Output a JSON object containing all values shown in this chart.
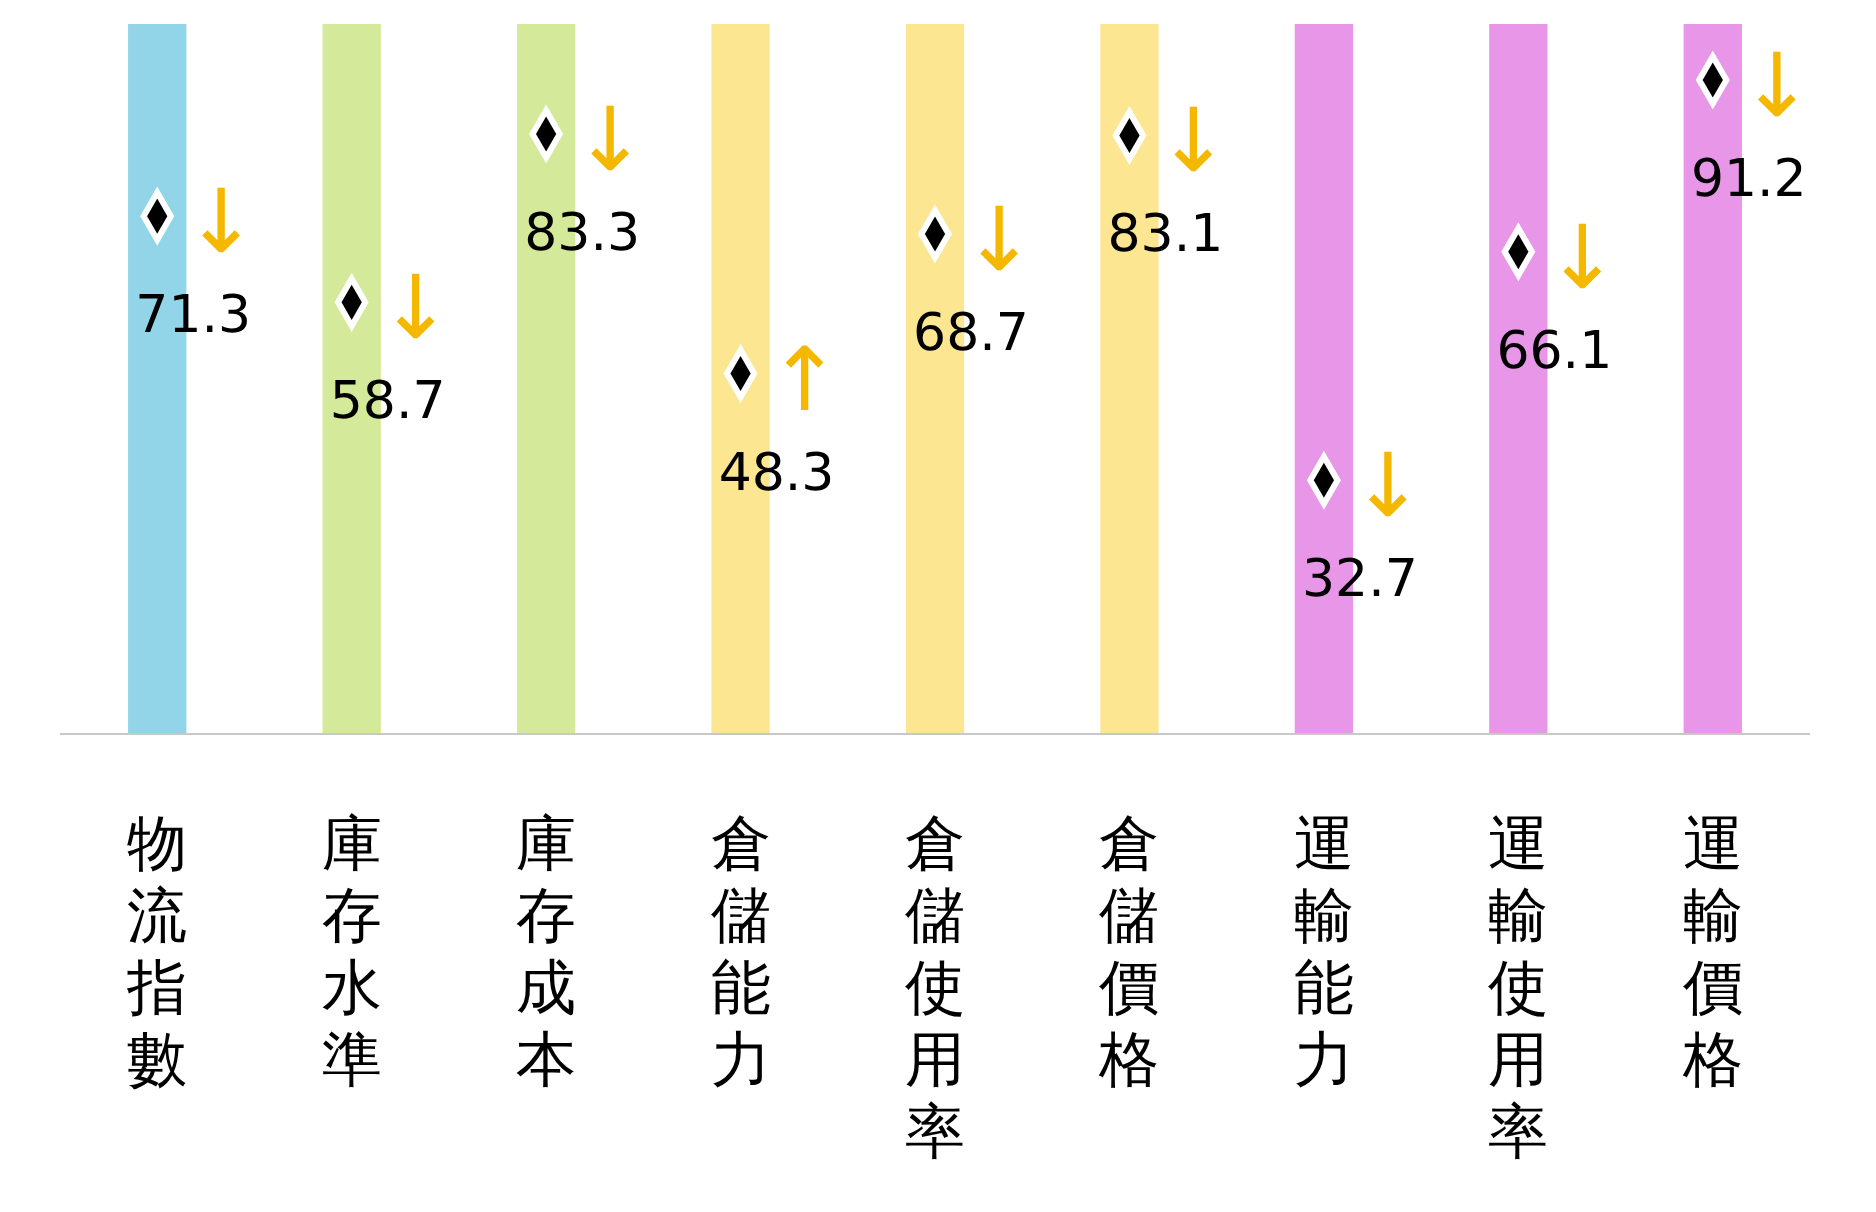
{
  "chart_data": {
    "type": "scatter",
    "categories": [
      "物流指數",
      "庫存水準",
      "庫存成本",
      "倉儲能力",
      "倉儲使用率",
      "倉儲價格",
      "運輸能力",
      "運輸使用率",
      "運輸價格"
    ],
    "values": [
      71.3,
      58.7,
      83.3,
      48.3,
      68.7,
      83.1,
      32.7,
      66.1,
      91.2
    ],
    "color": "#000000",
    "marker": "diamond",
    "data_labels": true,
    "bands": [
      {
        "axis": "x",
        "from": "物流指數",
        "to": "物流指數",
        "color": "#93d5e8"
      },
      {
        "axis": "x",
        "from": "庫存水準",
        "to": "庫存水準",
        "color": "#d5e99b"
      },
      {
        "axis": "x",
        "from": "庫存成本",
        "to": "庫存成本",
        "color": "#d5e99b"
      },
      {
        "axis": "x",
        "from": "倉儲能力",
        "to": "倉儲能力",
        "color": "#fde692"
      },
      {
        "axis": "x",
        "from": "倉儲使用率",
        "to": "倉儲使用率",
        "color": "#fde692"
      },
      {
        "axis": "x",
        "from": "倉儲價格",
        "to": "倉儲價格",
        "color": "#fde692"
      },
      {
        "axis": "x",
        "from": "運輸能力",
        "to": "運輸能力",
        "color": "#e897e8"
      },
      {
        "axis": "x",
        "from": "運輸使用率",
        "to": "運輸使用率",
        "color": "#e897e8"
      },
      {
        "axis": "x",
        "from": "運輸價格",
        "to": "運輸價格",
        "color": "#e897e8"
      }
    ],
    "annotations": [
      {
        "text": "↓",
        "x": "物流指數"
      },
      {
        "text": "↓",
        "x": "庫存水準"
      },
      {
        "text": "↓",
        "x": "庫存成本"
      },
      {
        "text": "↑",
        "x": "倉儲能力"
      },
      {
        "text": "↓",
        "x": "倉儲使用率"
      },
      {
        "text": "↓",
        "x": "倉儲價格"
      },
      {
        "text": "↓",
        "x": "運輸能力"
      },
      {
        "text": "↓",
        "x": "運輸使用率"
      },
      {
        "text": "↓",
        "x": "運輸價格"
      }
    ]
  }
}
